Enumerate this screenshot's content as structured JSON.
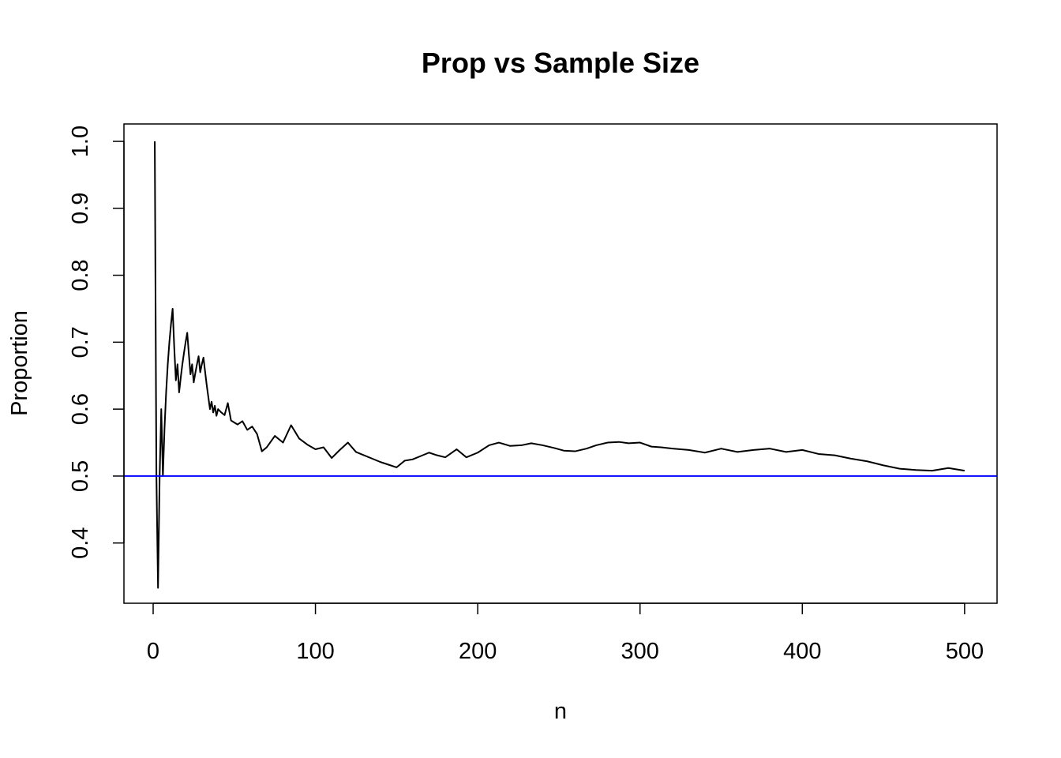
{
  "chart_data": {
    "type": "line",
    "title": "Prop vs Sample Size",
    "xlabel": "n",
    "ylabel": "Proportion",
    "xlim": [
      -18,
      520
    ],
    "ylim": [
      0.31,
      1.026
    ],
    "x_ticks": [
      0,
      100,
      200,
      300,
      400,
      500
    ],
    "x_tick_labels": [
      "0",
      "100",
      "200",
      "300",
      "400",
      "500"
    ],
    "y_ticks": [
      0.4,
      0.5,
      0.6,
      0.7,
      0.8,
      0.9,
      1.0
    ],
    "y_tick_labels": [
      "0.4",
      "0.5",
      "0.6",
      "0.7",
      "0.8",
      "0.9",
      "1.0"
    ],
    "grid": false,
    "legend": "none",
    "series": [
      {
        "color": "#000000",
        "x": [
          1,
          2,
          3,
          4,
          5,
          6,
          7,
          8,
          9,
          10,
          11,
          12,
          13,
          14,
          15,
          16,
          17,
          18,
          19,
          20,
          21,
          22,
          23,
          24,
          25,
          26,
          27,
          28,
          29,
          30,
          31,
          32,
          33,
          34,
          35,
          36,
          37,
          38,
          39,
          40,
          42,
          44,
          46,
          48,
          50,
          52,
          55,
          58,
          61,
          64,
          67,
          70,
          75,
          80,
          85,
          90,
          95,
          100,
          105,
          110,
          115,
          120,
          125,
          130,
          135,
          140,
          145,
          150,
          155,
          160,
          165,
          170,
          175,
          180,
          187,
          193,
          200,
          207,
          213,
          220,
          227,
          233,
          240,
          247,
          253,
          260,
          267,
          273,
          280,
          287,
          293,
          300,
          307,
          313,
          320,
          330,
          340,
          350,
          360,
          370,
          380,
          390,
          400,
          410,
          420,
          430,
          440,
          450,
          460,
          470,
          480,
          490,
          500
        ],
        "values": [
          1.0,
          0.5,
          0.333,
          0.5,
          0.6,
          0.5,
          0.571,
          0.625,
          0.667,
          0.7,
          0.727,
          0.75,
          0.692,
          0.643,
          0.667,
          0.625,
          0.647,
          0.667,
          0.684,
          0.7,
          0.714,
          0.682,
          0.652,
          0.667,
          0.64,
          0.654,
          0.667,
          0.679,
          0.655,
          0.667,
          0.677,
          0.656,
          0.636,
          0.618,
          0.6,
          0.611,
          0.595,
          0.605,
          0.59,
          0.6,
          0.595,
          0.591,
          0.609,
          0.583,
          0.58,
          0.577,
          0.582,
          0.569,
          0.574,
          0.563,
          0.537,
          0.543,
          0.56,
          0.55,
          0.576,
          0.556,
          0.547,
          0.54,
          0.543,
          0.527,
          0.539,
          0.55,
          0.536,
          0.531,
          0.526,
          0.521,
          0.517,
          0.513,
          0.523,
          0.525,
          0.53,
          0.535,
          0.531,
          0.528,
          0.54,
          0.528,
          0.535,
          0.546,
          0.55,
          0.545,
          0.546,
          0.549,
          0.546,
          0.542,
          0.538,
          0.537,
          0.541,
          0.546,
          0.55,
          0.551,
          0.549,
          0.55,
          0.544,
          0.543,
          0.541,
          0.539,
          0.535,
          0.541,
          0.536,
          0.539,
          0.541,
          0.536,
          0.539,
          0.533,
          0.531,
          0.526,
          0.522,
          0.516,
          0.511,
          0.509,
          0.508,
          0.512,
          0.508
        ]
      },
      {
        "color": "#0000ff",
        "x": [
          -18,
          520
        ],
        "values": [
          0.5,
          0.5
        ]
      }
    ]
  }
}
